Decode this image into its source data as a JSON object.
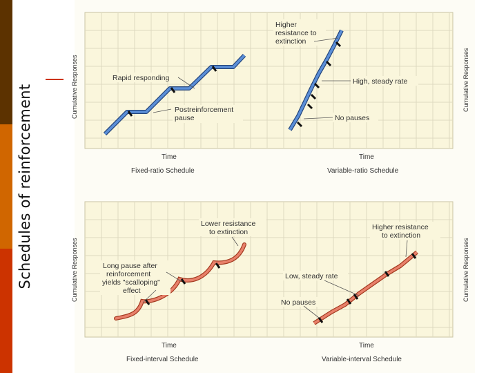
{
  "slide_title": "Schedules of reinforcement",
  "axis_y_label": "Cumulative Responses",
  "axis_x_label": "Time",
  "panels": {
    "fixed_ratio": {
      "caption": "Fixed-ratio Schedule",
      "annotations": {
        "rapid": "Rapid responding",
        "post_1": "Postreinforcement",
        "post_2": "pause"
      }
    },
    "variable_ratio": {
      "caption": "Variable-ratio Schedule",
      "annotations": {
        "higher_1": "Higher",
        "higher_2": "resistance to",
        "higher_3": "extinction",
        "steady": "High, steady rate",
        "nopause": "No pauses"
      }
    },
    "fixed_interval": {
      "caption": "Fixed-interval Schedule",
      "annotations": {
        "lower_1": "Lower resistance",
        "lower_2": "to extinction",
        "long_1": "Long pause after",
        "long_2": "reinforcement",
        "long_3": "yields \"scalloping\"",
        "long_4": "effect"
      }
    },
    "variable_interval": {
      "caption": "Variable-interval Schedule",
      "annotations": {
        "higher_1": "Higher resistance",
        "higher_2": "to extinction",
        "low": "Low, steady rate",
        "nopause": "No pauses"
      }
    }
  },
  "colors": {
    "ratio_line": "#5b8fd8",
    "interval_line": "#e8806a",
    "plot_bg": "#faf6dc",
    "grid": "#ded9c0"
  }
}
